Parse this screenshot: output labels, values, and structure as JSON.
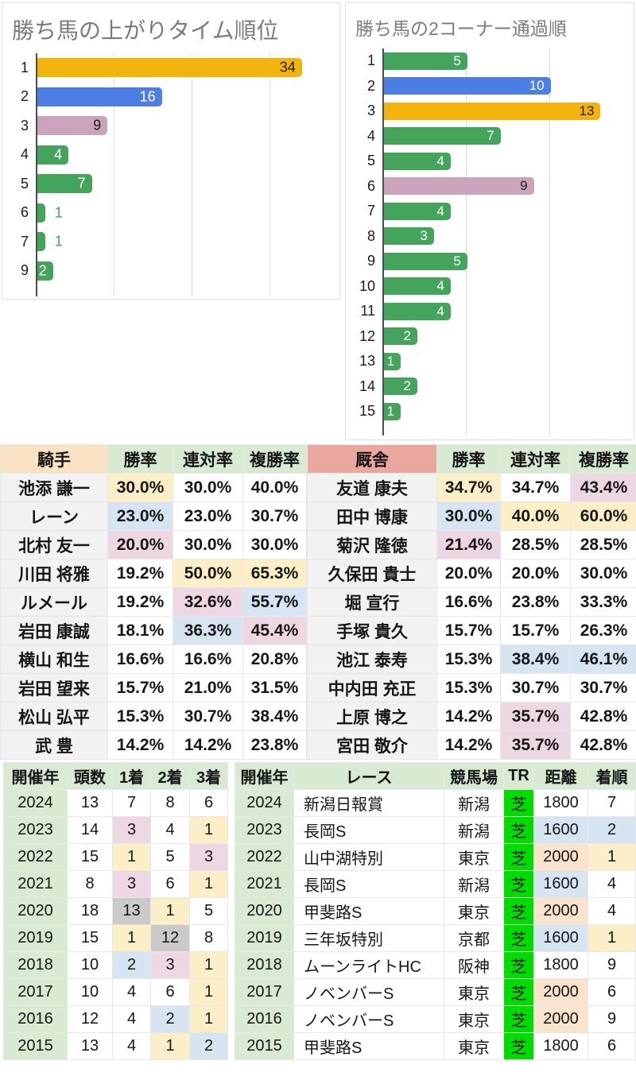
{
  "chart_data": [
    {
      "type": "bar",
      "orientation": "horizontal",
      "title": "勝ち馬の上がりタイム順位",
      "categories": [
        "1",
        "2",
        "3",
        "4",
        "5",
        "6",
        "7",
        "9"
      ],
      "values": [
        34,
        16,
        9,
        4,
        7,
        1,
        1,
        2
      ],
      "bar_colors": [
        "#F3B30D",
        "#4C7EE4",
        "#CBA3BB",
        "#45A45B",
        "#45A45B",
        "#45A45B",
        "#45A45B",
        "#45A45B"
      ],
      "label_inside": [
        true,
        true,
        true,
        true,
        true,
        false,
        false,
        true
      ],
      "label_colors": [
        "#1d1d1d",
        "#ffffff",
        "#1d1d1d",
        "#ffffff",
        "#ffffff",
        "#45A45B",
        "#45A45B",
        "#ffffff"
      ],
      "xlabel": "",
      "ylabel": "",
      "xlim": [
        0,
        38
      ],
      "gridlines": [
        10,
        20,
        30
      ],
      "legend": "none"
    },
    {
      "type": "bar",
      "orientation": "horizontal",
      "title": "勝ち馬の2コーナー通過順",
      "categories": [
        "1",
        "2",
        "3",
        "4",
        "5",
        "6",
        "7",
        "8",
        "9",
        "10",
        "11",
        "12",
        "13",
        "14",
        "15"
      ],
      "values": [
        5,
        10,
        13,
        7,
        4,
        9,
        4,
        3,
        5,
        4,
        4,
        2,
        1,
        2,
        1
      ],
      "bar_colors": [
        "#45A45B",
        "#4C7EE4",
        "#F3B30D",
        "#45A45B",
        "#45A45B",
        "#CBA3BB",
        "#45A45B",
        "#45A45B",
        "#45A45B",
        "#45A45B",
        "#45A45B",
        "#45A45B",
        "#45A45B",
        "#45A45B",
        "#45A45B"
      ],
      "label_inside": [
        true,
        true,
        true,
        true,
        true,
        true,
        true,
        true,
        true,
        true,
        true,
        true,
        true,
        true,
        true
      ],
      "label_colors": [
        "#ffffff",
        "#ffffff",
        "#1d1d1d",
        "#ffffff",
        "#ffffff",
        "#1d1d1d",
        "#ffffff",
        "#ffffff",
        "#ffffff",
        "#ffffff",
        "#ffffff",
        "#ffffff",
        "#ffffff",
        "#ffffff",
        "#ffffff"
      ],
      "xlabel": "",
      "ylabel": "",
      "xlim": [
        0,
        14.6
      ],
      "gridlines": [
        5,
        10
      ],
      "legend": "none"
    }
  ],
  "jockey_table": {
    "headers": [
      "騎手",
      "勝率",
      "連対率",
      "複勝率"
    ],
    "rows": [
      {
        "name": "池添 謙一",
        "values": [
          "30.0%",
          "30.0%",
          "40.0%"
        ],
        "hl": [
          "yellow",
          "none",
          "none"
        ]
      },
      {
        "name": "レーン",
        "values": [
          "23.0%",
          "23.0%",
          "30.7%"
        ],
        "hl": [
          "blue",
          "none",
          "none"
        ]
      },
      {
        "name": "北村 友一",
        "values": [
          "20.0%",
          "30.0%",
          "30.0%"
        ],
        "hl": [
          "pink",
          "none",
          "none"
        ]
      },
      {
        "name": "川田 将雅",
        "values": [
          "19.2%",
          "50.0%",
          "65.3%"
        ],
        "hl": [
          "none",
          "yellow",
          "yellow"
        ]
      },
      {
        "name": "ルメール",
        "values": [
          "19.2%",
          "32.6%",
          "55.7%"
        ],
        "hl": [
          "none",
          "pink",
          "blue"
        ]
      },
      {
        "name": "岩田 康誠",
        "values": [
          "18.1%",
          "36.3%",
          "45.4%"
        ],
        "hl": [
          "none",
          "blue",
          "pink"
        ]
      },
      {
        "name": "横山 和生",
        "values": [
          "16.6%",
          "16.6%",
          "20.8%"
        ],
        "hl": [
          "none",
          "none",
          "none"
        ]
      },
      {
        "name": "岩田 望来",
        "values": [
          "15.7%",
          "21.0%",
          "31.5%"
        ],
        "hl": [
          "none",
          "none",
          "none"
        ]
      },
      {
        "name": "松山 弘平",
        "values": [
          "15.3%",
          "30.7%",
          "38.4%"
        ],
        "hl": [
          "none",
          "none",
          "none"
        ]
      },
      {
        "name": "武 豊",
        "values": [
          "14.2%",
          "14.2%",
          "23.8%"
        ],
        "hl": [
          "none",
          "none",
          "none"
        ]
      }
    ]
  },
  "trainer_table": {
    "headers": [
      "厩舎",
      "勝率",
      "連対率",
      "複勝率"
    ],
    "rows": [
      {
        "name": "友道 康夫",
        "values": [
          "34.7%",
          "34.7%",
          "43.4%"
        ],
        "hl": [
          "yellow",
          "none",
          "pink"
        ]
      },
      {
        "name": "田中 博康",
        "values": [
          "30.0%",
          "40.0%",
          "60.0%"
        ],
        "hl": [
          "blue",
          "yellow",
          "yellow"
        ]
      },
      {
        "name": "菊沢 隆徳",
        "values": [
          "21.4%",
          "28.5%",
          "28.5%"
        ],
        "hl": [
          "pink",
          "none",
          "none"
        ]
      },
      {
        "name": "久保田 貴士",
        "values": [
          "20.0%",
          "20.0%",
          "30.0%"
        ],
        "hl": [
          "none",
          "none",
          "none"
        ]
      },
      {
        "name": "堀 宣行",
        "values": [
          "16.6%",
          "23.8%",
          "33.3%"
        ],
        "hl": [
          "none",
          "none",
          "none"
        ]
      },
      {
        "name": "手塚 貴久",
        "values": [
          "15.7%",
          "15.7%",
          "26.3%"
        ],
        "hl": [
          "none",
          "none",
          "none"
        ]
      },
      {
        "name": "池江 泰寿",
        "values": [
          "15.3%",
          "38.4%",
          "46.1%"
        ],
        "hl": [
          "none",
          "blue",
          "blue"
        ]
      },
      {
        "name": "中内田 充正",
        "values": [
          "15.3%",
          "30.7%",
          "30.7%"
        ],
        "hl": [
          "none",
          "none",
          "none"
        ]
      },
      {
        "name": "上原 博之",
        "values": [
          "14.2%",
          "35.7%",
          "42.8%"
        ],
        "hl": [
          "none",
          "pink",
          "none"
        ]
      },
      {
        "name": "宮田 敬介",
        "values": [
          "14.2%",
          "35.7%",
          "42.8%"
        ],
        "hl": [
          "none",
          "pink",
          "none"
        ]
      }
    ]
  },
  "year_table": {
    "headers": [
      "開催年",
      "頭数",
      "1着",
      "2着",
      "3着"
    ],
    "rows": [
      {
        "year": "2024",
        "values": [
          "13",
          "7",
          "8",
          "6"
        ],
        "hl": [
          "none",
          "none",
          "none",
          "none"
        ]
      },
      {
        "year": "2023",
        "values": [
          "14",
          "3",
          "4",
          "1"
        ],
        "hl": [
          "none",
          "pink",
          "none",
          "yellow"
        ]
      },
      {
        "year": "2022",
        "values": [
          "15",
          "1",
          "5",
          "3"
        ],
        "hl": [
          "none",
          "yellow",
          "none",
          "pink"
        ]
      },
      {
        "year": "2021",
        "values": [
          "8",
          "3",
          "6",
          "1"
        ],
        "hl": [
          "none",
          "pink",
          "none",
          "yellow"
        ]
      },
      {
        "year": "2020",
        "values": [
          "18",
          "13",
          "1",
          "5"
        ],
        "hl": [
          "none",
          "gray",
          "yellow",
          "none"
        ]
      },
      {
        "year": "2019",
        "values": [
          "15",
          "1",
          "12",
          "8"
        ],
        "hl": [
          "none",
          "yellow",
          "gray",
          "none"
        ]
      },
      {
        "year": "2018",
        "values": [
          "10",
          "2",
          "3",
          "1"
        ],
        "hl": [
          "none",
          "blue",
          "pink",
          "yellow"
        ]
      },
      {
        "year": "2017",
        "values": [
          "10",
          "4",
          "6",
          "1"
        ],
        "hl": [
          "none",
          "none",
          "none",
          "yellow"
        ]
      },
      {
        "year": "2016",
        "values": [
          "12",
          "4",
          "2",
          "1"
        ],
        "hl": [
          "none",
          "none",
          "blue",
          "yellow"
        ]
      },
      {
        "year": "2015",
        "values": [
          "13",
          "4",
          "1",
          "2"
        ],
        "hl": [
          "none",
          "none",
          "yellow",
          "blue"
        ]
      }
    ]
  },
  "race_table": {
    "headers": [
      "開催年",
      "レース",
      "競馬場",
      "TR",
      "距離",
      "着順"
    ],
    "rows": [
      {
        "year": "2024",
        "race": "新潟日報賞",
        "course": "新潟",
        "tr": "芝",
        "dist": "1800",
        "dist_hl": "none",
        "pos": "7",
        "pos_hl": "none"
      },
      {
        "year": "2023",
        "race": "長岡S",
        "course": "新潟",
        "tr": "芝",
        "dist": "1600",
        "dist_hl": "blue",
        "pos": "2",
        "pos_hl": "blue"
      },
      {
        "year": "2022",
        "race": "山中湖特別",
        "course": "東京",
        "tr": "芝",
        "dist": "2000",
        "dist_hl": "tan",
        "pos": "1",
        "pos_hl": "yellow"
      },
      {
        "year": "2021",
        "race": "長岡S",
        "course": "新潟",
        "tr": "芝",
        "dist": "1600",
        "dist_hl": "blue",
        "pos": "4",
        "pos_hl": "none"
      },
      {
        "year": "2020",
        "race": "甲斐路S",
        "course": "東京",
        "tr": "芝",
        "dist": "2000",
        "dist_hl": "tan",
        "pos": "4",
        "pos_hl": "none"
      },
      {
        "year": "2019",
        "race": "三年坂特別",
        "course": "京都",
        "tr": "芝",
        "dist": "1600",
        "dist_hl": "blue",
        "pos": "1",
        "pos_hl": "yellow"
      },
      {
        "year": "2018",
        "race": "ムーンライトHC",
        "course": "阪神",
        "tr": "芝",
        "dist": "1800",
        "dist_hl": "none",
        "pos": "9",
        "pos_hl": "none"
      },
      {
        "year": "2017",
        "race": "ノベンバーS",
        "course": "東京",
        "tr": "芝",
        "dist": "2000",
        "dist_hl": "tan",
        "pos": "6",
        "pos_hl": "none"
      },
      {
        "year": "2016",
        "race": "ノベンバーS",
        "course": "東京",
        "tr": "芝",
        "dist": "2000",
        "dist_hl": "tan",
        "pos": "9",
        "pos_hl": "none"
      },
      {
        "year": "2015",
        "race": "甲斐路S",
        "course": "東京",
        "tr": "芝",
        "dist": "1800",
        "dist_hl": "none",
        "pos": "6",
        "pos_hl": "none"
      }
    ]
  },
  "colors": {
    "bar_green": "#45A45B",
    "bar_blue": "#4C7EE4",
    "bar_yellow": "#F3B30D",
    "bar_pink": "#CBA3BB",
    "highlight_yellow": "#FCEEC6",
    "highlight_blue": "#D7E5F3",
    "highlight_pink": "#EDD7E2",
    "highlight_gray": "#CACACA",
    "highlight_tan": "#FAE3CC",
    "header_green": "#D9EAD3",
    "header_peach": "#FAE3C2",
    "header_salmon": "#E9A89E",
    "name_cell_gray": "#F2F2F2",
    "turf_green": "#00DC00",
    "title_gray": "#7b7b7b"
  }
}
